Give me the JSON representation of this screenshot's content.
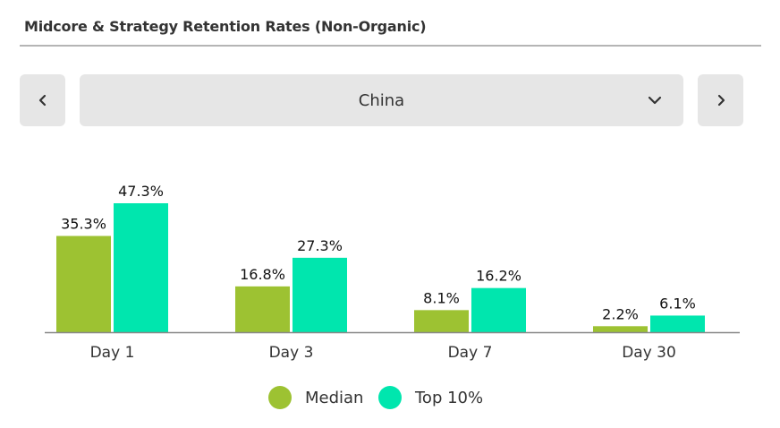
{
  "chart_data": {
    "type": "bar",
    "title": "Midcore & Strategy Retention Rates (Non-Organic)",
    "categories": [
      "Day 1",
      "Day 3",
      "Day 7",
      "Day 30"
    ],
    "series": [
      {
        "name": "Median",
        "values": [
          35.3,
          16.8,
          8.1,
          2.2
        ],
        "labels": [
          "35.3%",
          "16.8%",
          "8.1%",
          "2.2%"
        ],
        "color": "#9dc232"
      },
      {
        "name": "Top 10%",
        "values": [
          47.3,
          27.3,
          16.2,
          6.1
        ],
        "labels": [
          "47.3%",
          "27.3%",
          "16.2%",
          "6.1%"
        ],
        "color": "#00e6ae"
      }
    ],
    "ylim": [
      0,
      47.3
    ],
    "grid": false,
    "legend": "bottom"
  },
  "filter": {
    "selected": "China",
    "prev_icon": "chevron-left-icon",
    "next_icon": "chevron-right-icon",
    "dropdown_icon": "chevron-down-icon"
  },
  "colors": {
    "button_bg": "#e6e6e6",
    "axis": "#888888"
  }
}
